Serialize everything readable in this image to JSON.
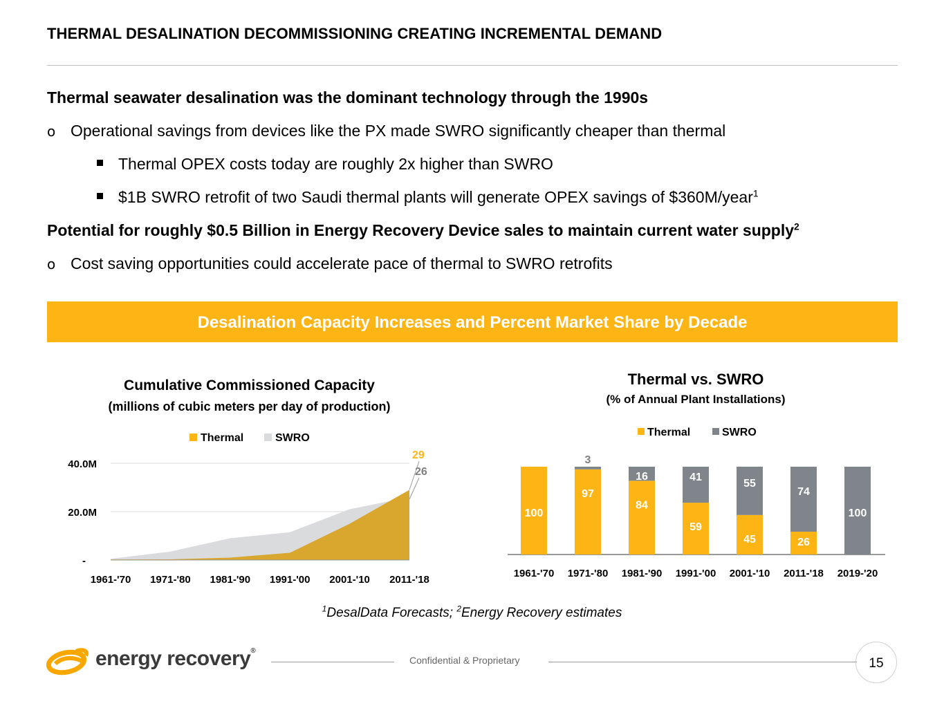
{
  "header": {
    "title": "THERMAL DESALINATION DECOMMISSIONING CREATING INCREMENTAL DEMAND"
  },
  "body": {
    "heading1": "Thermal seawater desalination was the dominant technology through the 1990s",
    "bullet1": "Operational savings from devices like the PX made SWRO significantly cheaper than thermal",
    "sub1": "Thermal OPEX costs today are roughly 2x higher than SWRO",
    "sub2": "$1B SWRO retrofit of two Saudi thermal plants will generate OPEX savings of $360M/year",
    "sub2_sup": "1",
    "heading2": "Potential for roughly $0.5 Billion in Energy Recovery Device sales to maintain current water supply",
    "heading2_sup": "2",
    "bullet2": "Cost saving opportunities could accelerate pace of thermal to SWRO retrofits",
    "bullet_marker": "o"
  },
  "banner": {
    "text": "Desalination Capacity Increases and Percent Market Share by Decade"
  },
  "colors": {
    "thermal": "#FDB515",
    "thermal_area": "#D9A62E",
    "swro_area": "#D9DBDD",
    "swro_bar": "#7F858A",
    "banner": "#FDB515"
  },
  "chart_data": [
    {
      "type": "area",
      "title": "Cumulative Commissioned Capacity",
      "subtitle": "(millions of cubic meters per day of production)",
      "legend": [
        "Thermal",
        "SWRO"
      ],
      "legend_position": "top-center",
      "categories": [
        "1961-'70",
        "1971-'80",
        "1981-'90",
        "1991-'00",
        "2001-'10",
        "2011-'18"
      ],
      "yticks": [
        "-",
        "20.0M",
        "40.0M"
      ],
      "ylim": [
        0,
        40
      ],
      "series": [
        {
          "name": "Thermal",
          "values": [
            0.2,
            0.3,
            1.0,
            3.0,
            15.0,
            29
          ]
        },
        {
          "name": "SWRO",
          "values": [
            0.5,
            3.5,
            9.0,
            11.5,
            21.0,
            26
          ]
        }
      ],
      "annotations": [
        {
          "series": "Thermal",
          "label": "29"
        },
        {
          "series": "SWRO",
          "label": "26"
        }
      ]
    },
    {
      "type": "bar",
      "stacked": true,
      "title": "Thermal vs. SWRO",
      "subtitle": "(% of Annual Plant Installations)",
      "legend": [
        "Thermal",
        "SWRO"
      ],
      "legend_position": "top-center",
      "categories": [
        "1961-'70",
        "1971-'80",
        "1981-'90",
        "1991-'00",
        "2001-'10",
        "2011-'18",
        "2019-'20"
      ],
      "series": [
        {
          "name": "Thermal",
          "values": [
            100,
            97,
            84,
            59,
            45,
            26,
            0
          ]
        },
        {
          "name": "SWRO",
          "values": [
            0,
            3,
            16,
            41,
            55,
            74,
            100
          ]
        }
      ],
      "labels": {
        "thermal": [
          "100",
          "97",
          "84",
          "59",
          "45",
          "26",
          ""
        ],
        "swro": [
          "",
          "3",
          "16",
          "41",
          "55",
          "74",
          "100"
        ]
      },
      "ylim": [
        0,
        100
      ]
    }
  ],
  "footer": {
    "footnote_sup1": "1",
    "footnote_part1": "DesalData Forecasts; ",
    "footnote_sup2": "2",
    "footnote_part2": "Energy Recovery estimates",
    "confidential": "Confidential & Proprietary",
    "page_number": "15",
    "logo_text": "energy recovery",
    "logo_mark": "®"
  }
}
